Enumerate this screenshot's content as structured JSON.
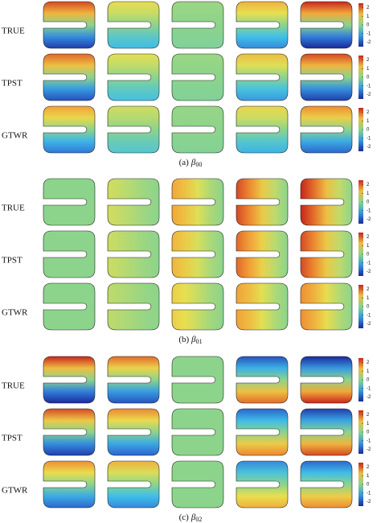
{
  "figure": {
    "colorbar_lim": [
      -2.5,
      2.5
    ],
    "groups": [
      {
        "rows": [
          "TRUE",
          "TPST",
          "GTWR"
        ],
        "colorbar_ticks": [
          2,
          1,
          0,
          -1,
          -2
        ],
        "caption": {
          "label": "(a)",
          "symbol": "β",
          "subscript": "00"
        }
      },
      {
        "rows": [
          "TRUE",
          "TPST",
          "GTWR"
        ],
        "colorbar_ticks": [
          2,
          1,
          0,
          -1,
          -2
        ],
        "caption": {
          "label": "(b)",
          "symbol": "β",
          "subscript": "01"
        }
      },
      {
        "rows": [
          "TRUE",
          "TPST",
          "GTWR"
        ],
        "colorbar_ticks": [
          2,
          1,
          0,
          -1,
          -2
        ],
        "caption": {
          "label": "(c)",
          "symbol": "β",
          "subscript": "02"
        }
      }
    ]
  }
}
